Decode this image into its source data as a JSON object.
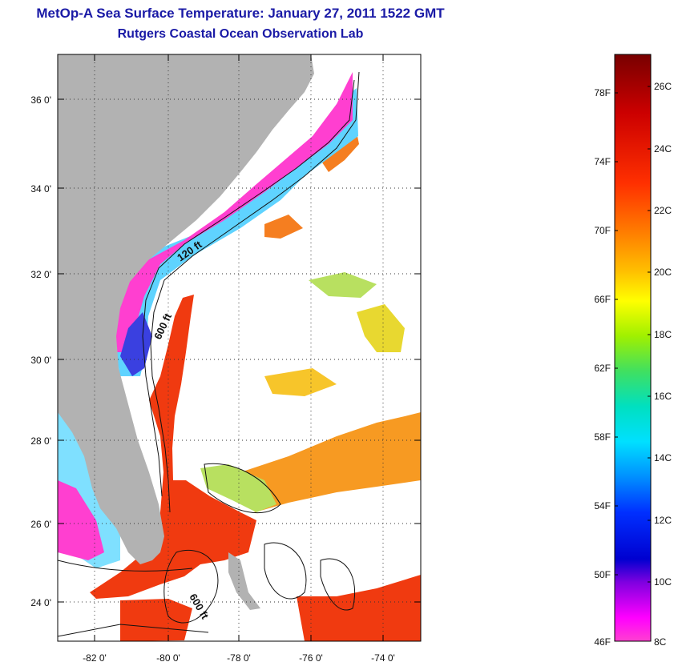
{
  "header": {
    "title": "MetOp-A Sea Surface Temperature:  January 27, 2011 1522 GMT",
    "subtitle": "Rutgers Coastal Ocean Observation Lab"
  },
  "map": {
    "lat_labels": [
      "36 0'",
      "34 0'",
      "32 0'",
      "30 0'",
      "28 0'",
      "26 0'",
      "24 0'"
    ],
    "lon_labels": [
      "-82 0'",
      "-80 0'",
      "-78 0'",
      "-76 0'",
      "-74 0'"
    ],
    "contour_labels": [
      "120 ft",
      "600 ft",
      "600 ft"
    ],
    "colors": {
      "land": "#b2b2b2",
      "cloud": "#ffffff",
      "gulf_stream": "#f03a10",
      "sargasso": "#f79a22"
    }
  },
  "colorbar": {
    "fahrenheit_labels": [
      "78F",
      "74F",
      "70F",
      "66F",
      "62F",
      "58F",
      "54F",
      "50F",
      "46F"
    ],
    "celsius_labels": [
      "26C",
      "24C",
      "22C",
      "20C",
      "18C",
      "16C",
      "14C",
      "12C",
      "10C",
      "8C"
    ],
    "gradient": [
      "#780000",
      "#cc0000",
      "#ff3000",
      "#ff7a00",
      "#ffc000",
      "#ffff00",
      "#a0f000",
      "#40e060",
      "#00e0c0",
      "#00e0ff",
      "#0090ff",
      "#0030ff",
      "#0000d0",
      "#8000e0",
      "#ff00ff",
      "#ff40d0"
    ]
  }
}
